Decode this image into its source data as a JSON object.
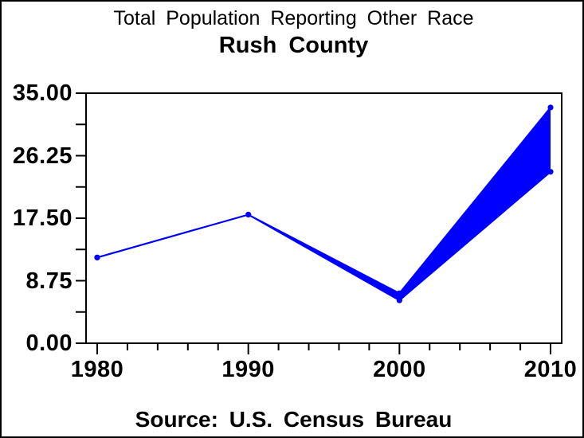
{
  "colors": {
    "series_blue": "#0000ff",
    "axis_black": "#000000",
    "background": "#ffffff",
    "text": "#000000"
  },
  "chart_data": {
    "type": "area",
    "title": "Total Population Reporting Other Race",
    "subtitle": "Rush County",
    "source_note": "Source: U.S. Census Bureau",
    "x": [
      1980,
      1990,
      2000,
      2010
    ],
    "x_tick_labels": [
      "1980",
      "1990",
      "2000",
      "2010"
    ],
    "series": [
      {
        "name": "upper_bound_line",
        "values": [
          12,
          18,
          7,
          33
        ]
      },
      {
        "name": "lower_bound_line",
        "values": [
          12,
          18,
          6,
          24
        ]
      }
    ],
    "band_fill_between_series": true,
    "marker": "dot",
    "xlabel": "",
    "ylabel": "",
    "ylim": [
      0,
      35
    ],
    "y_ticks": [
      0,
      8.75,
      17.5,
      26.25,
      35
    ],
    "y_tick_labels": [
      "0.00",
      "8.75",
      "17.50",
      "26.25",
      "35.00"
    ],
    "x_minor_ticks_per_interval": 4,
    "y_minor_ticks_per_interval": 1,
    "grid": false,
    "legend": "none"
  }
}
